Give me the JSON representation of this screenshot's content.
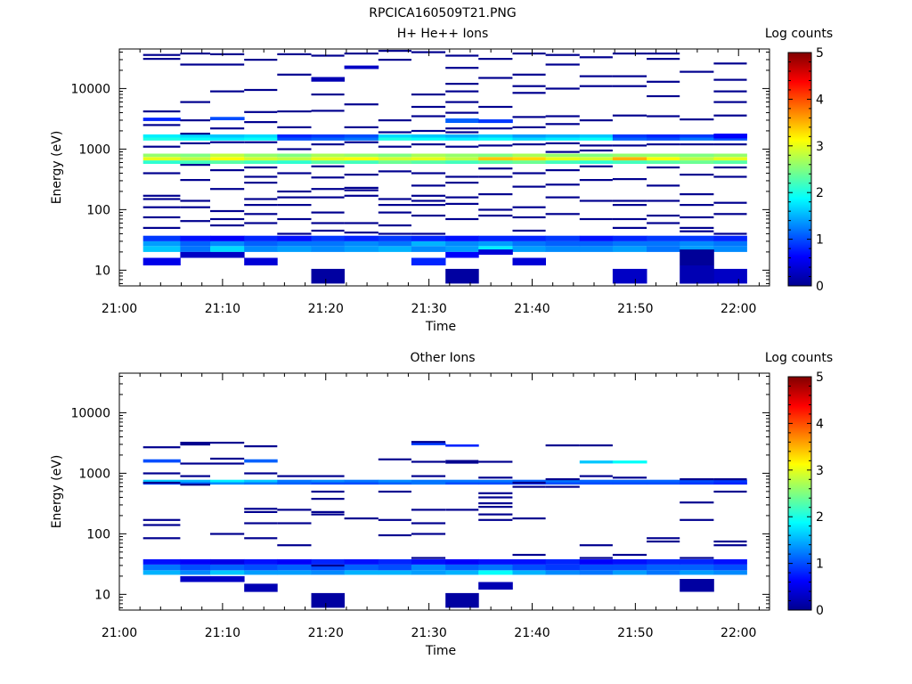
{
  "figure": {
    "title": "RPCICA160509T21.PNG"
  },
  "chart_data": [
    {
      "type": "heatmap",
      "title": "H+ He++ Ions",
      "xlabel": "Time",
      "ylabel": "Energy (eV)",
      "colorbar_label": "Log counts",
      "x_ticks": [
        "21:00",
        "21:10",
        "21:20",
        "21:30",
        "21:40",
        "21:50",
        "22:00"
      ],
      "y_ticks": [
        "10",
        "100",
        "1000",
        "10000"
      ],
      "colorbar_ticks": [
        "0",
        "1",
        "2",
        "3",
        "4",
        "5"
      ],
      "x_range_min": [
        0,
        63
      ],
      "y_range_eV": [
        5.5,
        45000
      ],
      "c_range": [
        0,
        5
      ],
      "grid": false,
      "colormap": [
        "#00008f",
        "#0000ff",
        "#00ffff",
        "#ffff00",
        "#ff0000",
        "#800000"
      ],
      "time_bins_min": [
        2.3,
        5.9,
        8.8,
        12.1,
        15.3,
        18.6,
        21.8,
        25.1,
        28.3,
        31.6,
        34.8,
        38.1,
        41.3,
        44.6,
        47.8,
        51.1,
        54.3,
        57.6,
        60.8
      ],
      "bands": [
        {
          "e": [
            20,
            25
          ],
          "c": [
            1.6,
            1.2,
            1.7,
            1.3,
            1.4,
            1.3,
            1.4,
            1.5,
            1.3,
            1.4,
            1.8,
            1.4,
            1.3,
            1.3,
            1.4,
            1.2,
            1.4,
            1.3
          ]
        },
        {
          "e": [
            25,
            30
          ],
          "c": [
            1.4,
            1.1,
            1.3,
            1.1,
            1.2,
            1.2,
            1.3,
            1.2,
            1.5,
            1.3,
            1.4,
            1.2,
            1.1,
            1.1,
            1.2,
            1.2,
            1.3,
            1.2
          ]
        },
        {
          "e": [
            30,
            37
          ],
          "c": [
            0.9,
            0.7,
            0.6,
            0.8,
            0.7,
            0.9,
            0.8,
            0.9,
            0.8,
            0.7,
            0.8,
            0.8,
            0.9,
            0.7,
            0.8,
            0.9,
            0.9,
            0.8
          ]
        },
        {
          "e": [
            570,
            650
          ],
          "c": [
            2.1,
            2.2,
            2.3,
            2.2,
            2.1,
            2.3,
            2.2,
            2.4,
            2.3,
            2.2,
            2.3,
            2.4,
            2.2,
            2.1,
            2.2,
            2.3,
            2.4,
            2.3
          ]
        },
        {
          "e": [
            650,
            740
          ],
          "c": [
            3.0,
            2.8,
            3.1,
            2.9,
            2.8,
            3.0,
            3.1,
            2.9,
            3.0,
            2.8,
            3.4,
            3.3,
            3.0,
            2.9,
            3.5,
            3.1,
            2.8,
            3.0
          ]
        },
        {
          "e": [
            740,
            840
          ],
          "c": [
            2.6,
            2.5,
            2.8,
            2.6,
            2.5,
            2.7,
            2.6,
            2.5,
            2.7,
            2.6,
            2.5,
            2.7,
            2.6,
            2.5,
            2.6,
            2.6,
            2.5,
            2.6
          ]
        },
        {
          "e": [
            1380,
            1550
          ],
          "c": [
            2.0,
            1.9,
            1.8,
            1.9,
            1.0,
            1.1,
            1.2,
            2.0,
            1.9,
            1.8,
            1.9,
            1.7,
            1.8,
            1.9,
            1.1,
            1.0,
            1.2,
            1.0
          ]
        },
        {
          "e": [
            1550,
            1750
          ],
          "c": [
            1.8,
            1.7,
            1.6,
            1.7,
            0.8,
            0.9,
            1.0,
            1.7,
            1.6,
            1.5,
            1.6,
            1.4,
            1.5,
            1.6,
            0.9,
            0.8,
            0.9,
            0.8
          ]
        }
      ],
      "cells": [
        {
          "t": 0,
          "e": [
            12,
            16
          ],
          "c": 0.5
        },
        {
          "t": 1,
          "e": [
            16,
            20
          ],
          "c": 0.3
        },
        {
          "t": 2,
          "e": [
            16,
            20
          ],
          "c": 0.3
        },
        {
          "t": 3,
          "e": [
            12,
            16
          ],
          "c": 0.4
        },
        {
          "t": 8,
          "e": [
            12,
            16
          ],
          "c": 0.8
        },
        {
          "t": 9,
          "e": [
            16,
            20
          ],
          "c": 0.6
        },
        {
          "t": 10,
          "e": [
            18,
            22
          ],
          "c": 0.4
        },
        {
          "t": 11,
          "e": [
            12,
            16
          ],
          "c": 0.4
        },
        {
          "t": 5,
          "e": [
            6,
            10.5
          ],
          "c": 0.1
        },
        {
          "t": 9,
          "e": [
            6,
            10.5
          ],
          "c": 0.1
        },
        {
          "t": 14,
          "e": [
            6,
            10.5
          ],
          "c": 0.3
        },
        {
          "t": 17,
          "e": [
            6,
            10.5
          ],
          "c": 0.3
        },
        {
          "t": 16,
          "e": [
            6,
            12
          ],
          "c": 0.2
        },
        {
          "t": 16,
          "e": [
            12,
            22
          ],
          "c": 0.05
        },
        {
          "t": 5,
          "e": [
            13000,
            15500
          ],
          "c": 0.2
        },
        {
          "t": 6,
          "e": [
            21000,
            24000
          ],
          "c": 0.3
        },
        {
          "t": 17,
          "e": [
            1500,
            1800
          ],
          "c": 0.6
        },
        {
          "t": 0,
          "e": [
            2900,
            3300
          ],
          "c": 0.8
        },
        {
          "t": 9,
          "e": [
            2700,
            3200
          ],
          "c": 1.1
        },
        {
          "t": 10,
          "e": [
            2700,
            3100
          ],
          "c": 0.9
        },
        {
          "t": 2,
          "e": [
            3000,
            3400
          ],
          "c": 1.0
        }
      ],
      "lines": [
        {
          "t": 0,
          "e": [
            36000,
            31000,
            4200,
            2500,
            1100,
            400,
            170,
            150,
            110,
            75,
            50
          ]
        },
        {
          "t": 1,
          "e": [
            38000,
            25000,
            6000,
            3000,
            1800,
            1250,
            550,
            310,
            140,
            110,
            65
          ]
        },
        {
          "t": 2,
          "e": [
            37000,
            25000,
            9000,
            2200,
            1300,
            450,
            220,
            95,
            70,
            55
          ]
        },
        {
          "t": 3,
          "e": [
            30000,
            9500,
            4100,
            2800,
            1300,
            500,
            350,
            280,
            150,
            120,
            85,
            60
          ]
        },
        {
          "t": 4,
          "e": [
            37000,
            17000,
            4200,
            2300,
            1000,
            400,
            200,
            160,
            120,
            70,
            40
          ]
        },
        {
          "t": 5,
          "e": [
            35000,
            8000,
            4300,
            1200,
            520,
            340,
            220,
            160,
            90,
            60,
            45
          ]
        },
        {
          "t": 6,
          "e": [
            38000,
            5500,
            2300,
            1300,
            380,
            230,
            210,
            170,
            60,
            42
          ]
        },
        {
          "t": 7,
          "e": [
            42000,
            30000,
            3000,
            1900,
            1100,
            430,
            150,
            120,
            90,
            55,
            40
          ]
        },
        {
          "t": 8,
          "e": [
            40000,
            8000,
            5000,
            3500,
            2000,
            1200,
            400,
            250,
            170,
            140,
            120,
            80,
            40
          ]
        },
        {
          "t": 9,
          "e": [
            35000,
            22000,
            12000,
            9000,
            6000,
            4000,
            2200,
            1900,
            1100,
            350,
            280,
            160,
            125,
            70
          ]
        },
        {
          "t": 10,
          "e": [
            31000,
            15000,
            5000,
            2200,
            1150,
            480,
            350,
            180,
            100,
            80
          ]
        },
        {
          "t": 11,
          "e": [
            38000,
            17000,
            11000,
            8500,
            3400,
            2300,
            1200,
            400,
            240,
            110,
            75,
            45
          ]
        },
        {
          "t": 12,
          "e": [
            36000,
            25000,
            10000,
            3500,
            2600,
            1250,
            900,
            450,
            260,
            160,
            85
          ]
        },
        {
          "t": 13,
          "e": [
            33000,
            16000,
            11000,
            3000,
            1150,
            950,
            520,
            310,
            140,
            70
          ]
        },
        {
          "t": 14,
          "e": [
            38000,
            16000,
            11000,
            3600,
            1150,
            320,
            140,
            120,
            70,
            50
          ]
        },
        {
          "t": 15,
          "e": [
            38000,
            31000,
            13000,
            7500,
            3500,
            1200,
            500,
            250,
            140,
            80,
            60
          ]
        },
        {
          "t": 16,
          "e": [
            19000,
            3100,
            1200,
            380,
            180,
            120,
            75,
            50,
            44
          ]
        },
        {
          "t": 17,
          "e": [
            26000,
            14000,
            9000,
            6000,
            3600,
            1200,
            500,
            350,
            130,
            85,
            40
          ]
        },
        {
          "t": 18,
          "e": [
            34000,
            24000,
            13000,
            10000,
            2500,
            1100,
            420,
            180,
            100,
            60,
            45
          ]
        }
      ]
    },
    {
      "type": "heatmap",
      "title": "Other Ions",
      "xlabel": "Time",
      "ylabel": "Energy (eV)",
      "colorbar_label": "Log counts",
      "x_ticks": [
        "21:00",
        "21:10",
        "21:20",
        "21:30",
        "21:40",
        "21:50",
        "22:00"
      ],
      "y_ticks": [
        "10",
        "100",
        "1000",
        "10000"
      ],
      "colorbar_ticks": [
        "0",
        "1",
        "2",
        "3",
        "4",
        "5"
      ],
      "x_range_min": [
        0,
        63
      ],
      "y_range_eV": [
        5.5,
        45000
      ],
      "c_range": [
        0,
        5
      ],
      "grid": false,
      "colormap": [
        "#00008f",
        "#0000ff",
        "#00ffff",
        "#ffff00",
        "#ff0000",
        "#800000"
      ],
      "time_bins_min": [
        2.3,
        5.9,
        8.8,
        12.1,
        15.3,
        18.6,
        21.8,
        25.1,
        28.3,
        31.6,
        34.8,
        38.1,
        41.3,
        44.6,
        47.8,
        51.1,
        54.3,
        57.6,
        60.8
      ],
      "bands": [
        {
          "e": [
            21,
            25
          ],
          "c": [
            1.5,
            1.3,
            1.6,
            1.4,
            1.4,
            1.3,
            1.5,
            1.5,
            1.4,
            1.5,
            1.9,
            1.5,
            1.3,
            1.2,
            1.4,
            1.2,
            1.4,
            1.3
          ]
        },
        {
          "e": [
            25,
            31
          ],
          "c": [
            1.2,
            1.0,
            1.1,
            1.0,
            1.1,
            1.0,
            1.1,
            1.0,
            1.3,
            1.1,
            1.2,
            1.0,
            0.9,
            1.0,
            1.0,
            1.1,
            1.1,
            1.0
          ]
        },
        {
          "e": [
            31,
            38
          ],
          "c": [
            0.7,
            0.6,
            0.5,
            0.7,
            0.6,
            0.8,
            0.7,
            0.8,
            0.7,
            0.6,
            0.7,
            0.7,
            0.8,
            0.6,
            0.7,
            0.8,
            0.8,
            0.7
          ]
        },
        {
          "e": [
            650,
            710
          ],
          "c": [
            1.0,
            1.1,
            1.3,
            1.2,
            1.1,
            1.0,
            1.0,
            1.1,
            1.2,
            1.0,
            1.0,
            0.9,
            1.0,
            1.0,
            1.0,
            1.0,
            0.9,
            0.8
          ]
        },
        {
          "e": [
            710,
            780
          ],
          "c": [
            1.6,
            1.5,
            1.8,
            1.6,
            1.2,
            1.3,
            1.2,
            1.3,
            1.2,
            1.2,
            1.2,
            1.1,
            1.2,
            1.1,
            1.1,
            1.1,
            1.0,
            0.9
          ]
        }
      ],
      "cells": [
        {
          "t": 1,
          "e": [
            16,
            20
          ],
          "c": 0.3
        },
        {
          "t": 2,
          "e": [
            16,
            20
          ],
          "c": 0.3
        },
        {
          "t": 3,
          "e": [
            11,
            15
          ],
          "c": 0.2
        },
        {
          "t": 10,
          "e": [
            12,
            16
          ],
          "c": 0.2
        },
        {
          "t": 16,
          "e": [
            11,
            18
          ],
          "c": 0.1
        },
        {
          "t": 5,
          "e": [
            6,
            10.5
          ],
          "c": 0.1
        },
        {
          "t": 9,
          "e": [
            6,
            10.5
          ],
          "c": 0.1
        },
        {
          "t": 0,
          "e": [
            1500,
            1700
          ],
          "c": 1.0
        },
        {
          "t": 3,
          "e": [
            1500,
            1700
          ],
          "c": 1.1
        },
        {
          "t": 13,
          "e": [
            1450,
            1620
          ],
          "c": 1.6
        },
        {
          "t": 14,
          "e": [
            1450,
            1620
          ],
          "c": 1.9
        },
        {
          "t": 8,
          "e": [
            2900,
            3200
          ],
          "c": 0.9
        },
        {
          "t": 9,
          "e": [
            2750,
            3000
          ],
          "c": 0.8
        }
      ],
      "lines": [
        {
          "t": 0,
          "e": [
            2700,
            1000,
            700,
            170,
            140,
            85
          ]
        },
        {
          "t": 1,
          "e": [
            3200,
            3000,
            1450,
            900,
            650
          ]
        },
        {
          "t": 2,
          "e": [
            3200,
            1750,
            1450,
            100
          ]
        },
        {
          "t": 3,
          "e": [
            2800,
            1000,
            260,
            230,
            150,
            85
          ]
        },
        {
          "t": 4,
          "e": [
            900,
            250,
            150,
            65
          ]
        },
        {
          "t": 5,
          "e": [
            900,
            500,
            380,
            230,
            210,
            30
          ]
        },
        {
          "t": 6,
          "e": [
            180
          ]
        },
        {
          "t": 7,
          "e": [
            1700,
            500,
            170,
            95
          ]
        },
        {
          "t": 8,
          "e": [
            3300,
            1550,
            900,
            250,
            150,
            100,
            40
          ]
        },
        {
          "t": 9,
          "e": [
            1600,
            1500,
            250
          ]
        },
        {
          "t": 10,
          "e": [
            1550,
            850,
            470,
            400,
            320,
            280,
            210,
            170
          ]
        },
        {
          "t": 11,
          "e": [
            700,
            600,
            180,
            45
          ]
        },
        {
          "t": 12,
          "e": [
            2900,
            800,
            600
          ]
        },
        {
          "t": 13,
          "e": [
            2900,
            900,
            65,
            40
          ]
        },
        {
          "t": 14,
          "e": [
            850,
            45
          ]
        },
        {
          "t": 15,
          "e": [
            85,
            75
          ]
        },
        {
          "t": 16,
          "e": [
            800,
            330,
            170,
            40
          ]
        },
        {
          "t": 17,
          "e": [
            800,
            500,
            75,
            65
          ]
        },
        {
          "t": 18,
          "e": [
            700,
            320,
            170
          ]
        }
      ]
    }
  ]
}
